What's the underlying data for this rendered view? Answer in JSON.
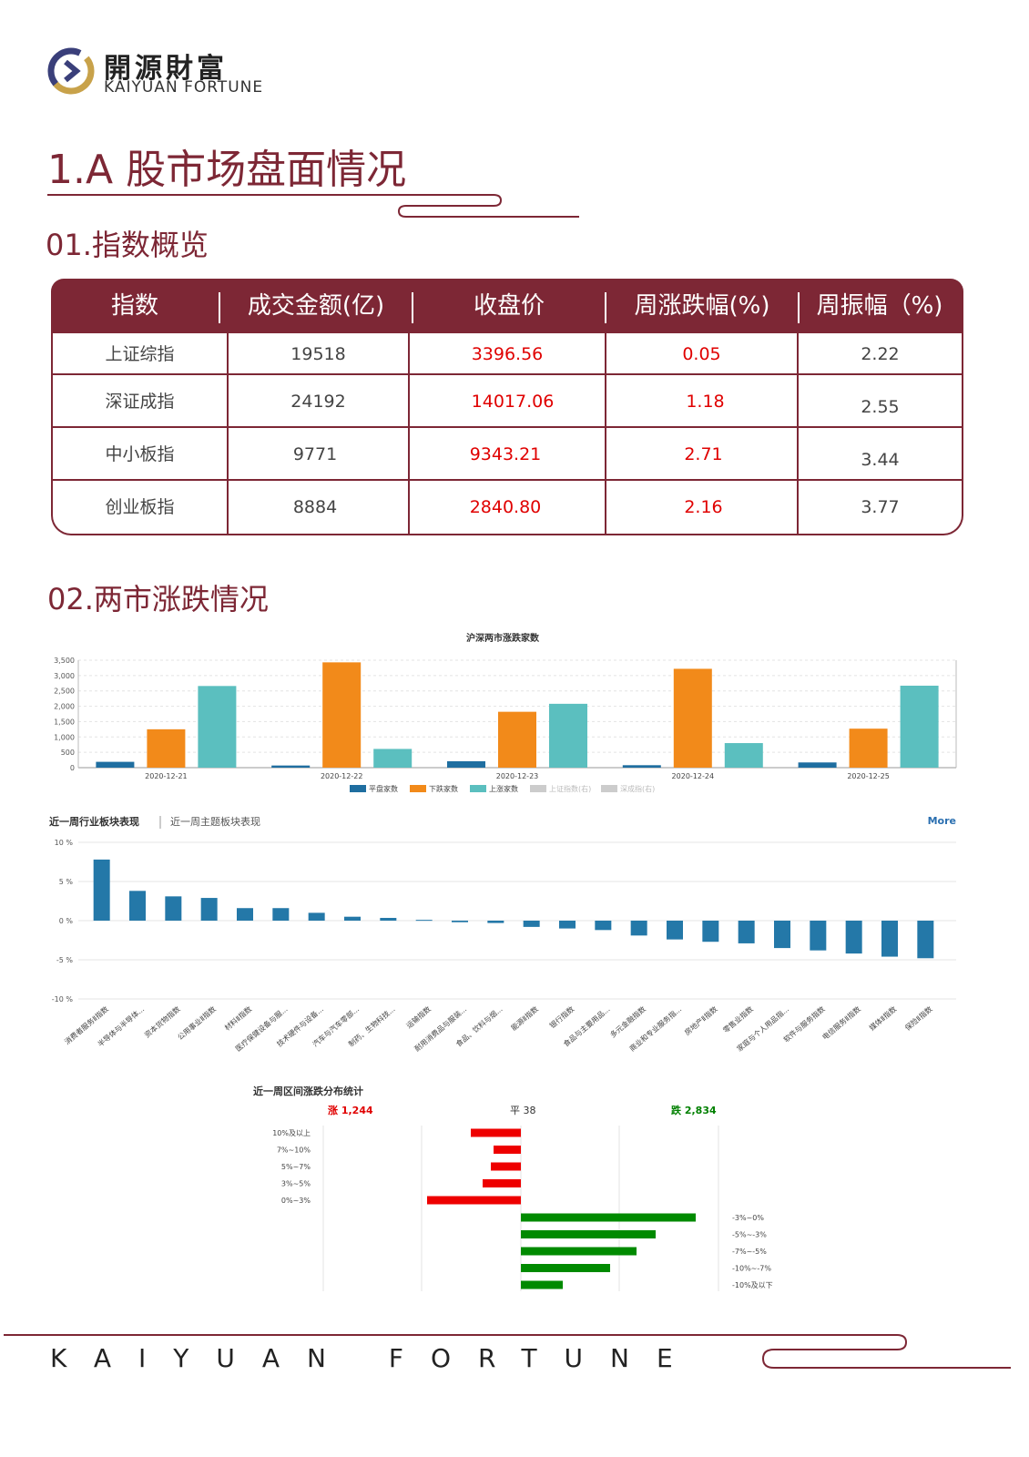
{
  "logo": {
    "cn": "開源財富",
    "en": "KAIYUAN FORTUNE"
  },
  "main_title": "1.A 股市场盘面情况",
  "section1": {
    "title": "01.指数概览"
  },
  "table": {
    "headers": [
      "指数",
      "成交金额(亿)",
      "收盘价",
      "周涨跌幅(%)",
      "周振幅（%)"
    ],
    "rows": [
      [
        "上证综指",
        "19518",
        "3396.56",
        "0.05",
        "2.22"
      ],
      [
        "深证成指",
        "24192",
        "14017.06",
        "1.18",
        "2.55"
      ],
      [
        "中小板指",
        "9771",
        "9343.21",
        "2.71",
        "3.44"
      ],
      [
        "创业板指",
        "8884",
        "2840.80",
        "2.16",
        "3.77"
      ]
    ]
  },
  "section2": {
    "title": "02.两市涨跌情况"
  },
  "colors": {
    "brand": "#7d2735",
    "up": "#e00000",
    "down": "#008000",
    "flat": "#1f6ea0",
    "fall_bar": "#f28a1a",
    "rise_bar": "#5bbfbf",
    "sector_bar": "#2478a8"
  },
  "chart_data": [
    {
      "type": "bar",
      "title": "沪深两市涨跌家数",
      "categories": [
        "2020-12-21",
        "2020-12-22",
        "2020-12-23",
        "2020-12-24",
        "2020-12-25"
      ],
      "series": [
        {
          "name": "平盘家数",
          "values": [
            190,
            70,
            210,
            80,
            170
          ],
          "color": "#1f6ea0"
        },
        {
          "name": "下跌家数",
          "values": [
            1250,
            3430,
            1820,
            3220,
            1270
          ],
          "color": "#f28a1a"
        },
        {
          "name": "上涨家数",
          "values": [
            2660,
            610,
            2080,
            800,
            2670
          ],
          "color": "#5bbfbf"
        }
      ],
      "legend_extra": [
        "上证指数(右)",
        "深成指(右)"
      ],
      "yticks": [
        "0",
        "500",
        "1,000",
        "1,500",
        "2,000",
        "2,500",
        "3,000",
        "3,500"
      ],
      "ylim": [
        0,
        3500
      ],
      "legend": "bottom",
      "grid": true
    },
    {
      "type": "bar",
      "tabs": [
        "近一周行业板块表现",
        "近一周主题板块表现"
      ],
      "more_label": "More",
      "yticks": [
        "10 %",
        "5 %",
        "0 %",
        "-5 %",
        "-10 %"
      ],
      "ylim": [
        -10,
        10
      ],
      "categories": [
        "消费者服务Ⅱ指数",
        "半导体与半导体...",
        "资本货物指数",
        "公用事业Ⅱ指数",
        "材料Ⅱ指数",
        "医疗保健设备与服...",
        "技术硬件与设备...",
        "汽车与汽车零部...",
        "制药、生物科技...",
        "运输指数",
        "耐用消费品与服装...",
        "食品、饮料与烟...",
        "能源Ⅱ指数",
        "银行指数",
        "食品与主要用品...",
        "多元金融指数",
        "商业和专业服务指...",
        "房地产Ⅱ指数",
        "零售业指数",
        "家庭与个人用品指...",
        "软件与服务指数",
        "电信服务Ⅱ指数",
        "媒体Ⅱ指数",
        "保险Ⅱ指数"
      ],
      "values": [
        7.8,
        3.8,
        3.1,
        2.9,
        1.6,
        1.6,
        1.0,
        0.5,
        0.35,
        0.1,
        -0.2,
        -0.3,
        -0.8,
        -1.0,
        -1.2,
        -1.9,
        -2.4,
        -2.7,
        -2.9,
        -3.5,
        -3.8,
        -4.2,
        -4.6,
        -4.8
      ],
      "color": "#2478a8",
      "grid": true
    },
    {
      "type": "bar",
      "title": "近一周区间涨跌分布统计",
      "summary": {
        "up": "涨 1,244",
        "flat": "平 38",
        "down": "跌 2,834"
      },
      "up_categories": [
        "10%及以上",
        "7%~10%",
        "5%~7%",
        "3%~5%",
        "0%~3%"
      ],
      "up_values": [
        55,
        30,
        33,
        42,
        103
      ],
      "down_categories": [
        "-3%~0%",
        "-5%~-3%",
        "-7%~-5%",
        "-10%~-7%",
        "-10%及以下"
      ],
      "down_values": [
        192,
        148,
        127,
        98,
        46
      ],
      "grid": true
    }
  ],
  "footer": {
    "brand": "KAIYUAN FORTUNE"
  }
}
